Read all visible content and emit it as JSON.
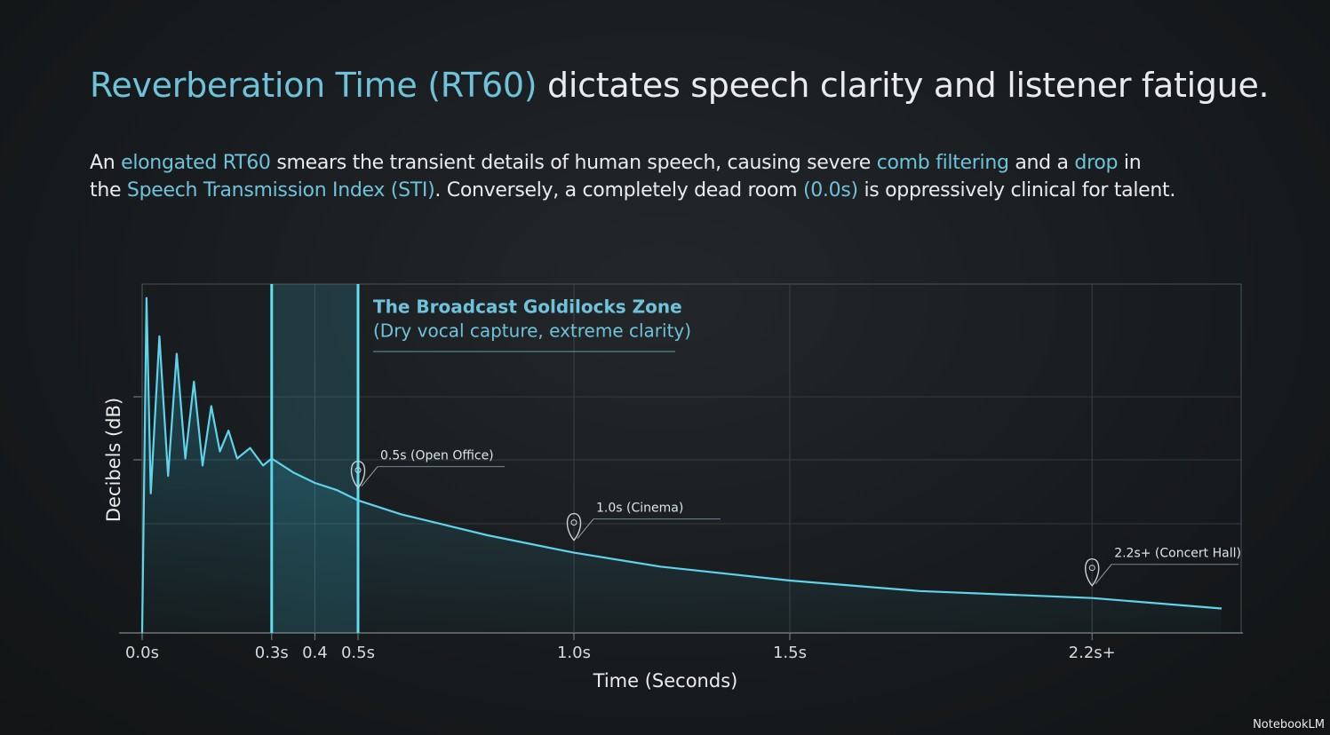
{
  "chart_data": {
    "type": "line",
    "title": [
      {
        "text": "Reverberation Time (RT60)",
        "highlight": true
      },
      {
        "text": " dictates speech clarity and listener fatigue.",
        "highlight": false
      }
    ],
    "subtitle": [
      [
        {
          "text": "An ",
          "highlight": false
        },
        {
          "text": "elongated RT60",
          "highlight": true
        },
        {
          "text": " smears the transient details of human speech, causing severe ",
          "highlight": false
        },
        {
          "text": "comb filtering",
          "highlight": true
        },
        {
          "text": " and a ",
          "highlight": false
        },
        {
          "text": "drop",
          "highlight": true
        },
        {
          "text": " in",
          "highlight": false
        }
      ],
      [
        {
          "text": "the ",
          "highlight": false
        },
        {
          "text": "Speech Transmission Index (STI)",
          "highlight": true
        },
        {
          "text": ". Conversely, a completely dead room ",
          "highlight": false
        },
        {
          "text": "(0.0s)",
          "highlight": true
        },
        {
          "text": " is oppressively clinical for talent.",
          "highlight": false
        }
      ]
    ],
    "highlight_color": "#6ec3da",
    "x_label": "Time (Seconds)",
    "y_label": "Decibels (dB)",
    "x": [
      0,
      0.01,
      0.02,
      0.04,
      0.06,
      0.08,
      0.1,
      0.12,
      0.14,
      0.16,
      0.18,
      0.2,
      0.22,
      0.25,
      0.28,
      0.3,
      0.35,
      0.4,
      0.45,
      0.5,
      0.6,
      0.7,
      0.8,
      1.0,
      1.2,
      1.5,
      1.8,
      2.2,
      2.5
    ],
    "series": [
      {
        "name": "Decay",
        "color": "#5fd3ea",
        "values": [
          0,
          96,
          40,
          85,
          45,
          80,
          50,
          72,
          48,
          65,
          52,
          58,
          50,
          53,
          48,
          50,
          46,
          43,
          41,
          38,
          34,
          31,
          28,
          23,
          19,
          15,
          12,
          10,
          7
        ]
      }
    ],
    "xlim": [
      0,
      2.5
    ],
    "ylim": [
      0,
      100
    ],
    "xticks": [
      {
        "value": 0,
        "label": "0.0s"
      },
      {
        "value": 0.3,
        "label": "0.3s"
      },
      0.4,
      {
        "value": 0.5,
        "label": "0.5s"
      },
      {
        "value": 1.0,
        "label": "1.0s"
      },
      {
        "value": 1.5,
        "label": "1.5s"
      },
      {
        "value": 2.2,
        "label": "2.2s+"
      }
    ],
    "zone": {
      "x": [
        0.3,
        0.5
      ],
      "title": "The Broadcast Goldilocks Zone",
      "subtitle": "(Dry vocal capture, extreme clarity)"
    },
    "annotations": [
      {
        "x": 0.5,
        "label": "0.5s (Open Office)"
      },
      {
        "x": 1.0,
        "label": "1.0s (Cinema)"
      },
      {
        "x": 2.2,
        "label": "2.2s+ (Concert Hall)"
      }
    ],
    "grid": true
  },
  "footer": "NotebookLM"
}
